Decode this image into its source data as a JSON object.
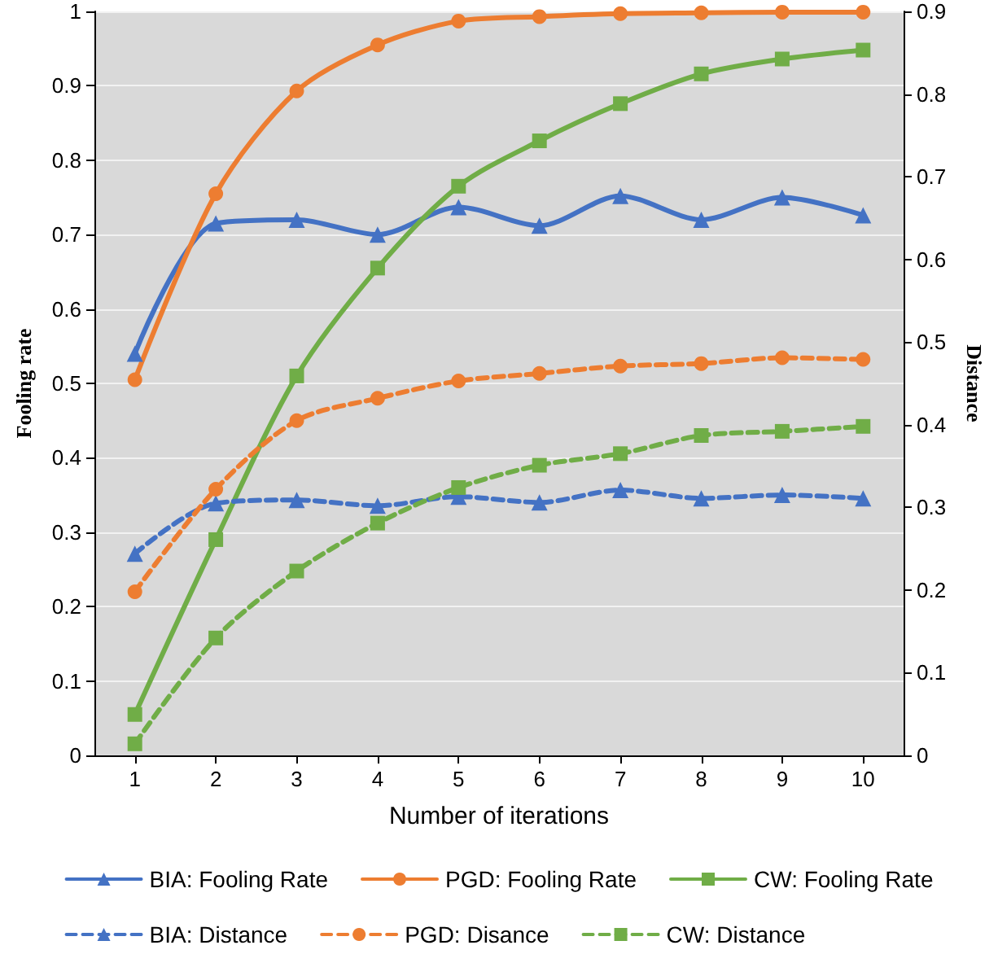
{
  "chart_data": {
    "type": "line",
    "xlabel": "Number of iterations",
    "ylabel": "Fooling rate",
    "y2label": "Distance",
    "categories": [
      "1",
      "2",
      "3",
      "4",
      "5",
      "6",
      "7",
      "8",
      "9",
      "10"
    ],
    "ylim": [
      0,
      1
    ],
    "yticks": [
      0,
      0.1,
      0.2,
      0.3,
      0.4,
      0.5,
      0.6,
      0.7,
      0.8,
      0.9,
      1
    ],
    "y2lim": [
      0,
      0.9
    ],
    "y2ticks": [
      0,
      0.1,
      0.2,
      0.3,
      0.4,
      0.5,
      0.6,
      0.7,
      0.8,
      0.9
    ],
    "grid": "y",
    "legend": "bottom",
    "line_style": "solid",
    "series": [
      {
        "name": "BIA: Fooling Rate",
        "color": "#4472c4",
        "marker": "triangle",
        "values": [
          0.54,
          0.715,
          0.72,
          0.7,
          0.737,
          0.712,
          0.752,
          0.72,
          0.75,
          0.726
        ]
      },
      {
        "name": "PGD: Fooling Rate",
        "color": "#ed7d31",
        "marker": "circle",
        "values": [
          0.505,
          0.755,
          0.893,
          0.955,
          0.987,
          0.993,
          0.997,
          0.998,
          0.999,
          0.999
        ]
      },
      {
        "name": "CW: Fooling Rate",
        "color": "#70ad47",
        "marker": "square",
        "values": [
          0.055,
          0.29,
          0.51,
          0.655,
          0.765,
          0.826,
          0.876,
          0.916,
          0.936,
          0.948
        ]
      },
      {
        "name": "BIA: Distance",
        "color": "#4472c4",
        "marker": "triangle",
        "line_style": "dashed",
        "axis": "y2",
        "values": [
          0.244,
          0.305,
          0.309,
          0.302,
          0.313,
          0.306,
          0.321,
          0.311,
          0.315,
          0.311
        ]
      },
      {
        "name": "PGD: Disance",
        "color": "#ed7d31",
        "marker": "circle",
        "line_style": "dashed",
        "axis": "y2",
        "values": [
          0.198,
          0.322,
          0.405,
          0.432,
          0.453,
          0.462,
          0.471,
          0.474,
          0.481,
          0.479
        ]
      },
      {
        "name": "CW: Distance",
        "color": "#70ad47",
        "marker": "square",
        "line_style": "dashed",
        "axis": "y2",
        "values": [
          0.014,
          0.142,
          0.223,
          0.281,
          0.324,
          0.351,
          0.365,
          0.387,
          0.392,
          0.398
        ]
      }
    ]
  }
}
